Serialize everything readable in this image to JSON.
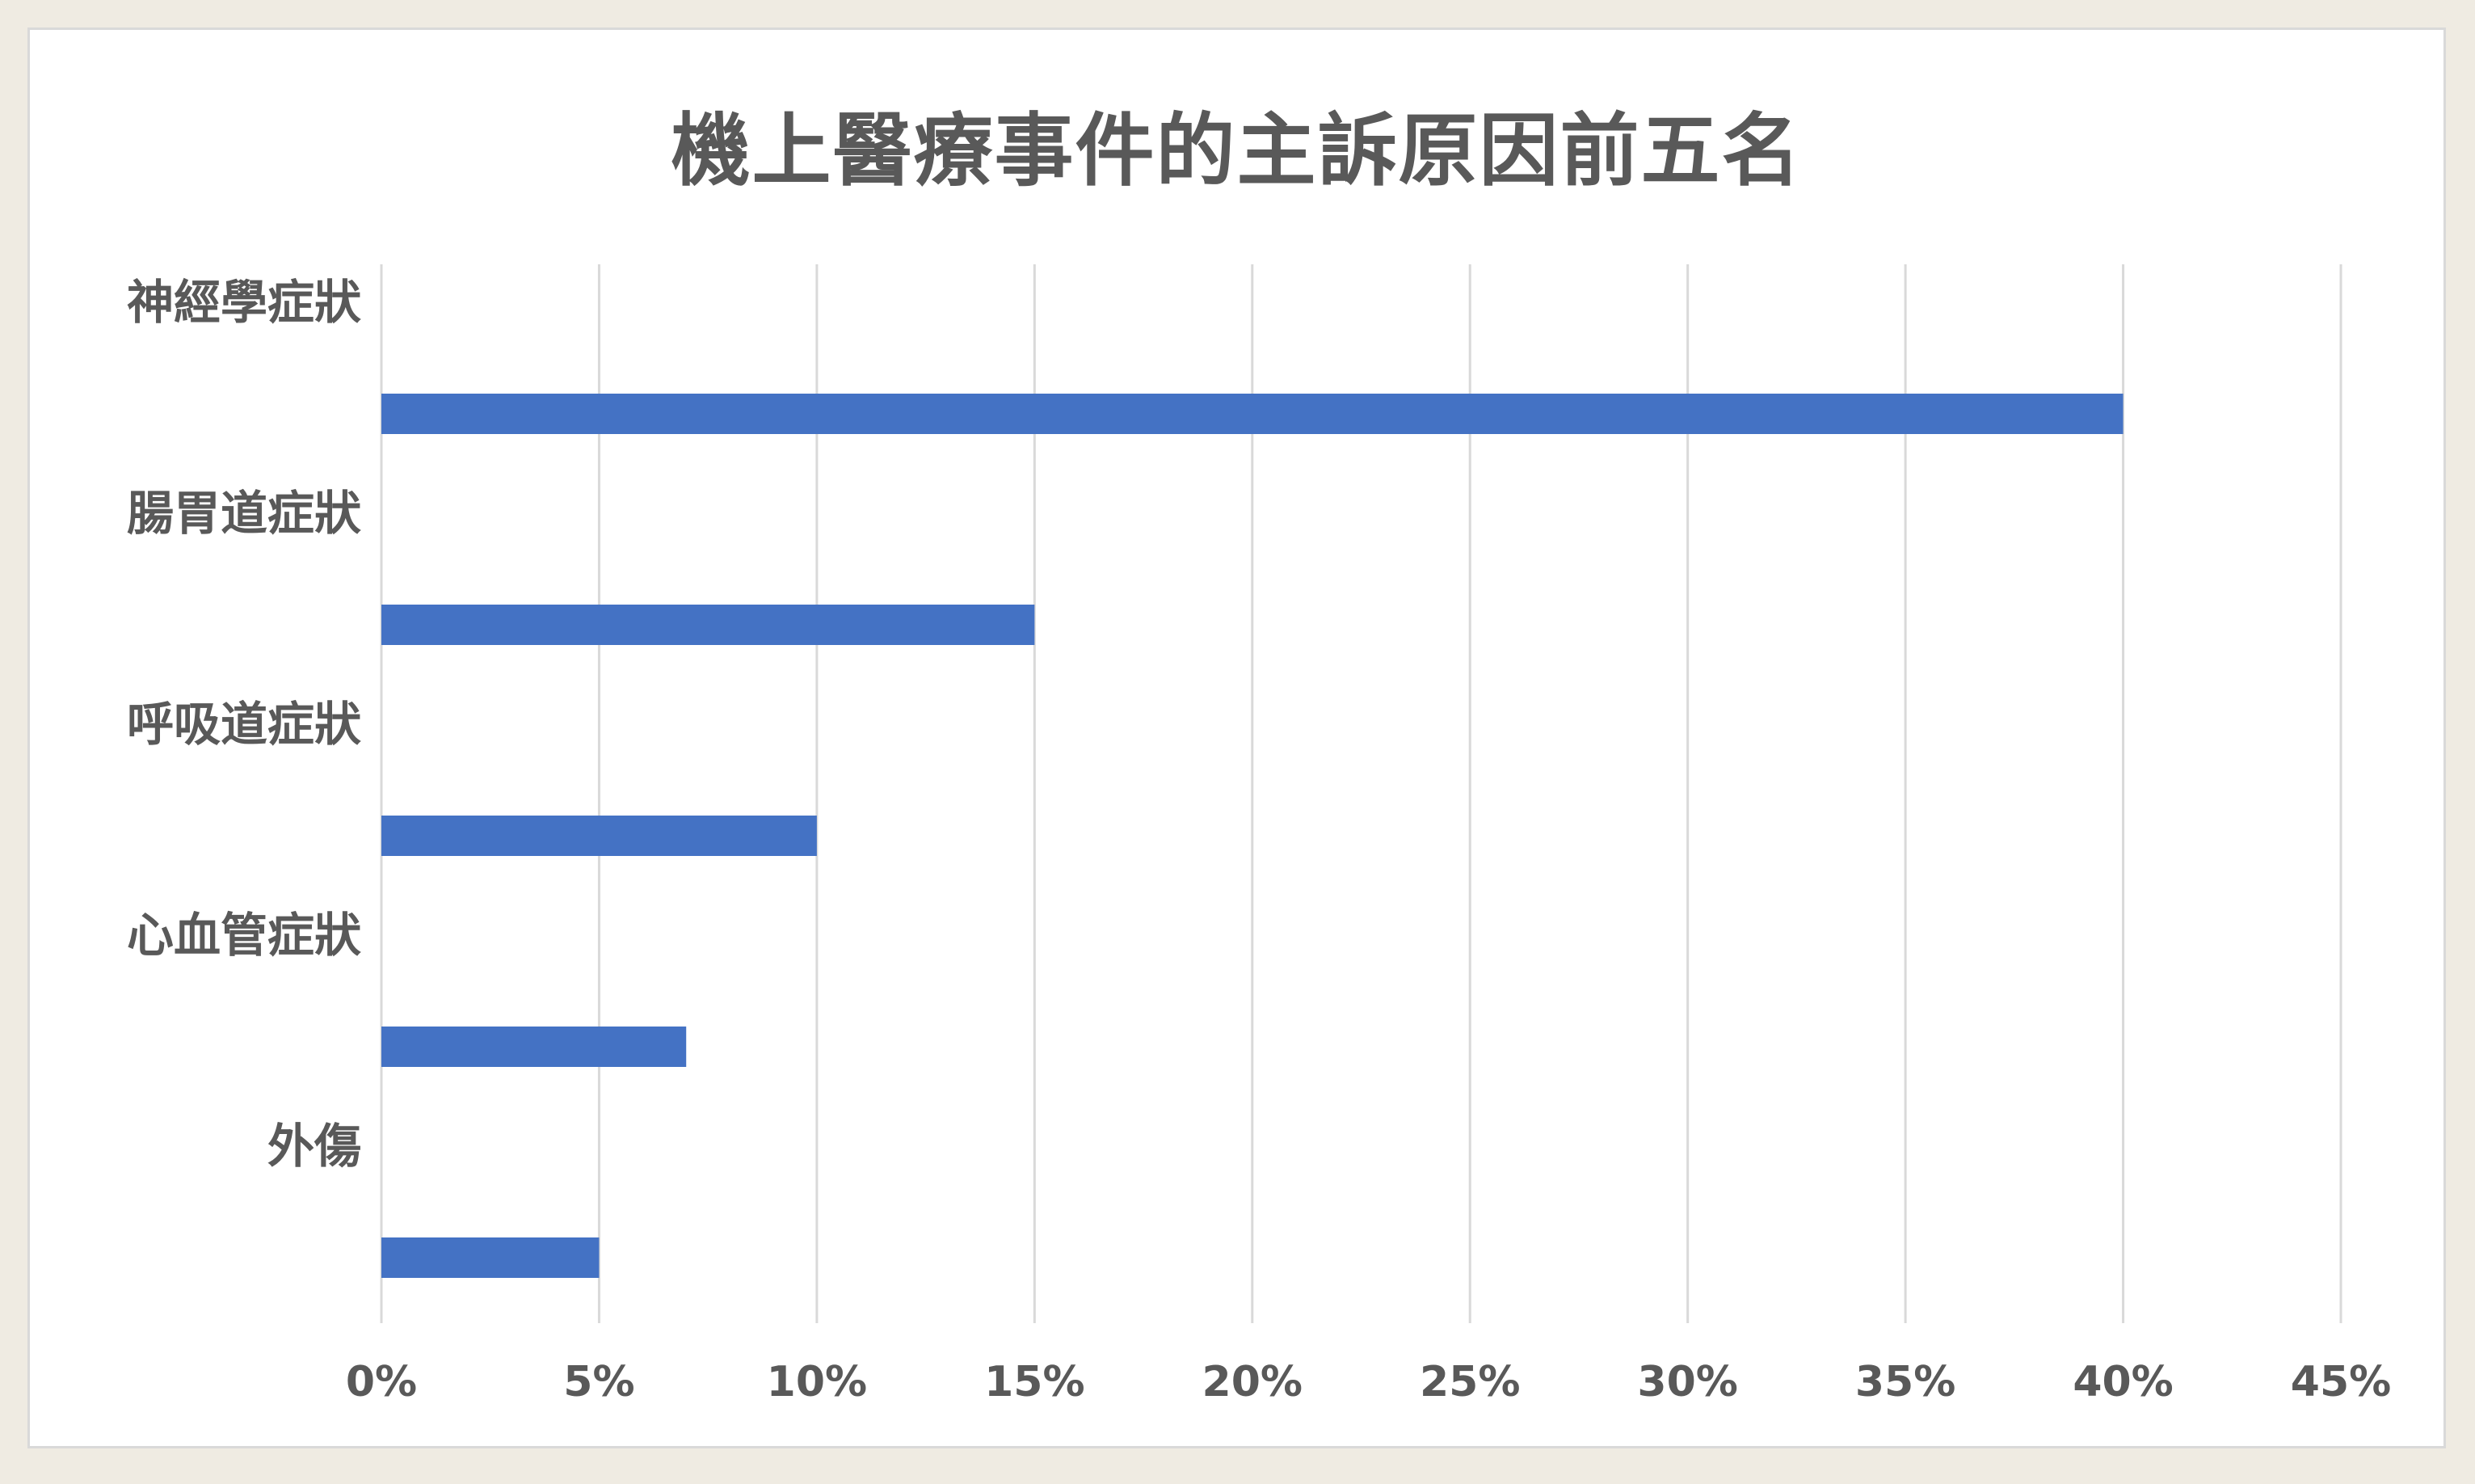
{
  "chart_data": {
    "type": "bar",
    "orientation": "horizontal",
    "title": "機上醫療事件的主訴原因前五名",
    "xlabel": "",
    "ylabel": "",
    "categories": [
      "神經學症狀",
      "腸胃道症狀",
      "呼吸道症狀",
      "心血管症狀",
      "外傷"
    ],
    "values": [
      40,
      15,
      10,
      7,
      5
    ],
    "value_unit": "%",
    "xlim": [
      0,
      45
    ],
    "ticks": [
      "0%",
      "5%",
      "10%",
      "15%",
      "20%",
      "25%",
      "30%",
      "35%",
      "40%",
      "45%"
    ],
    "grid": "vertical",
    "legend": "none",
    "colors": {
      "bar": "#4472c4",
      "grid": "#d9d9d9",
      "text": "#595959"
    }
  }
}
